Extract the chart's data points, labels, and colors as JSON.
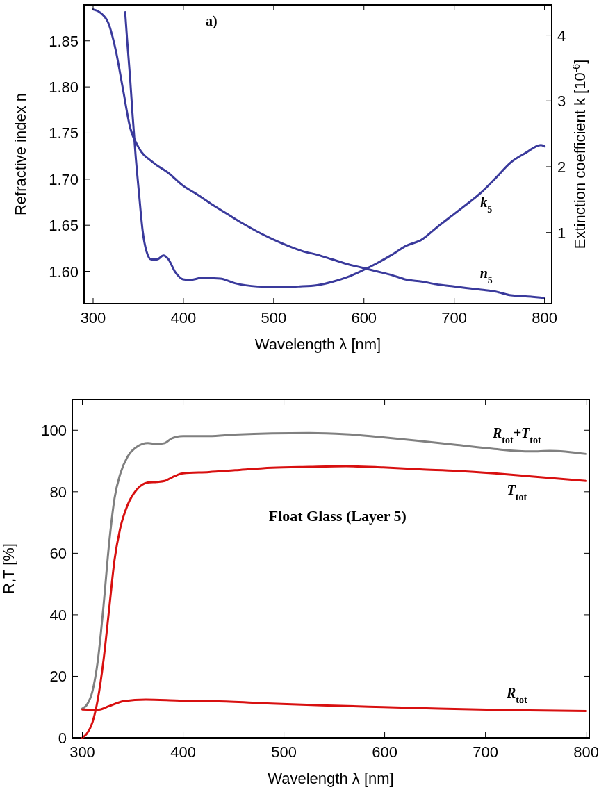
{
  "chart_data": [
    {
      "type": "line",
      "xlabel": "Wavelength λ [nm]",
      "ylabel": "Refractive index n",
      "y2label": "Extinction coefficient k [10$^{-6}$]",
      "annotations": [
        "a)"
      ],
      "xlim": [
        290,
        808
      ],
      "xticks": [
        300,
        400,
        500,
        600,
        700,
        800
      ],
      "ylim": [
        1.565,
        1.889
      ],
      "yticks": [
        {
          "value": 1.6,
          "label": "1.60"
        },
        1.65,
        {
          "value": 1.7,
          "label": "1.70"
        },
        1.75,
        {
          "value": 1.8,
          "label": "1.80"
        },
        1.85
      ],
      "y2lim": [
        -0.08,
        4.46
      ],
      "y2ticks": [
        1,
        2,
        3,
        4
      ],
      "series": [
        {
          "name": "n$_{5}$",
          "color": "#3a3a9c",
          "x": [
            300,
            308.7,
            317,
            325,
            333,
            341,
            350,
            366.5,
            383,
            399.5,
            416,
            432.5,
            449,
            465.6,
            482,
            498.6,
            515,
            531.6,
            548,
            564.7,
            581,
            597.7,
            614,
            630.7,
            647,
            663.8,
            680,
            696.8,
            713,
            730,
            746,
            763,
            779,
            800
          ],
          "values": [
            1.884,
            1.88,
            1.869,
            1.84,
            1.798,
            1.756,
            1.735,
            1.718,
            1.707,
            1.693,
            1.683,
            1.672,
            1.662,
            1.652,
            1.643,
            1.635,
            1.628,
            1.622,
            1.618,
            1.613,
            1.608,
            1.604,
            1.6,
            1.596,
            1.591,
            1.589,
            1.586,
            1.584,
            1.582,
            1.58,
            1.578,
            1.574,
            1.573,
            1.571
          ]
        },
        {
          "name": "k$_{5}$",
          "color": "#3a3a9c",
          "axis": "y2",
          "x": [
            335.5,
            337.6,
            340.9,
            343.8,
            347,
            350.8,
            355,
            359,
            364.4,
            370.6,
            378,
            383,
            391,
            399.5,
            407.8,
            420,
            440.8,
            457,
            482,
            506.9,
            527.5,
            548,
            564.7,
            581,
            597.7,
            614,
            630.7,
            647,
            663.8,
            680,
            696.8,
            713,
            730,
            746,
            763,
            779,
            796,
            800
          ],
          "values": [
            4.35,
            3.94,
            3.36,
            2.77,
            2.18,
            1.6,
            1.01,
            0.72,
            0.59,
            0.59,
            0.65,
            0.6,
            0.4,
            0.29,
            0.28,
            0.31,
            0.3,
            0.23,
            0.18,
            0.17,
            0.18,
            0.2,
            0.25,
            0.32,
            0.42,
            0.53,
            0.66,
            0.8,
            0.89,
            1.07,
            1.25,
            1.42,
            1.61,
            1.83,
            2.07,
            2.21,
            2.33,
            2.31
          ]
        }
      ]
    },
    {
      "type": "line",
      "xlabel": "Wavelength λ [nm]",
      "ylabel": "R,T [%]",
      "annotations": [
        "Float Glass (Layer 5)"
      ],
      "xlim": [
        290,
        803
      ],
      "xticks": [
        300,
        400,
        500,
        600,
        700,
        800
      ],
      "ylim": [
        0,
        110
      ],
      "yticks": [
        0,
        20,
        40,
        60,
        80,
        100
      ],
      "series": [
        {
          "name": "R$_{tot}$+T$_{tot}$",
          "color": "#808080",
          "x": [
            300,
            304.4,
            310,
            315.4,
            321,
            326.5,
            332,
            337.5,
            344.9,
            354,
            365,
            374,
            381.6,
            389,
            400,
            425.7,
            451.5,
            488,
            525,
            561.8,
            598.5,
            635,
            672,
            708.8,
            745.6,
            764,
            800
          ],
          "values": [
            9.5,
            10.7,
            15.1,
            25.2,
            42.9,
            63,
            78,
            85.7,
            91.4,
            94.6,
            95.8,
            95.5,
            95.8,
            97.4,
            98.1,
            98.1,
            98.6,
            99.0,
            99.1,
            98.7,
            97.7,
            96.5,
            95.2,
            93.9,
            93.1,
            93.3,
            92.3
          ]
        },
        {
          "name": "T$_{tot}$",
          "color": "#d81010",
          "x": [
            300,
            304.4,
            310,
            315.4,
            321,
            326.5,
            332,
            337.5,
            344.9,
            354,
            365,
            374,
            381.6,
            389,
            400,
            425.7,
            451.5,
            488,
            525,
            561.8,
            598.5,
            635,
            672,
            708.8,
            745.6,
            800
          ],
          "values": [
            0,
            1.3,
            5,
            12.6,
            25.2,
            41.6,
            58,
            68,
            75.7,
            80.7,
            83,
            83.2,
            83.5,
            84.7,
            86,
            86.4,
            87,
            87.8,
            88.1,
            88.3,
            87.9,
            87.3,
            86.8,
            86,
            85,
            83.5
          ]
        },
        {
          "name": "R$_{tot}$",
          "color": "#d81010",
          "x": [
            300,
            315.4,
            326.5,
            341,
            363,
            396,
            433,
            488,
            543,
            598.5,
            653.7,
            708.8,
            800
          ],
          "values": [
            9.2,
            9.1,
            10.3,
            11.9,
            12.4,
            12.1,
            11.9,
            11.1,
            10.5,
            10.0,
            9.5,
            9.1,
            8.7
          ]
        }
      ]
    }
  ]
}
